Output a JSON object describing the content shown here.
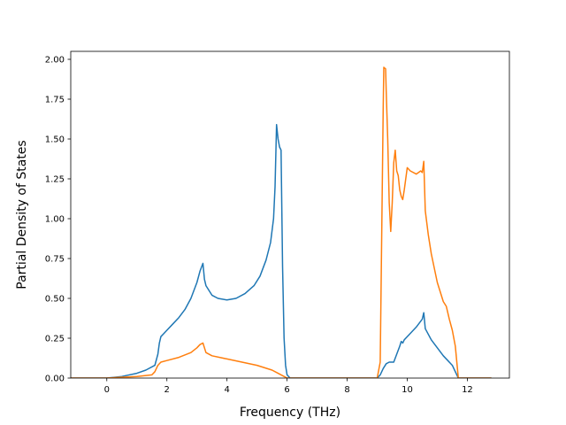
{
  "chart_data": {
    "type": "line",
    "title": "",
    "xlabel": "Frequency (THz)",
    "ylabel": "Partial Density of States",
    "xlim": [
      -1.2,
      13.4
    ],
    "ylim": [
      0,
      2.05
    ],
    "xticks": [
      0,
      2,
      4,
      6,
      8,
      10,
      12
    ],
    "xtick_labels": [
      "0",
      "2",
      "4",
      "6",
      "8",
      "10",
      "12"
    ],
    "yticks": [
      0,
      0.25,
      0.5,
      0.75,
      1.0,
      1.25,
      1.5,
      1.75,
      2.0
    ],
    "ytick_labels": [
      "0.00",
      "0.25",
      "0.50",
      "0.75",
      "1.00",
      "1.25",
      "1.50",
      "1.75",
      "2.00"
    ],
    "grid": false,
    "legend": "none",
    "series": [
      {
        "color": "#1f77b4",
        "x": [
          -1.2,
          -0.5,
          0,
          0.5,
          1.0,
          1.3,
          1.6,
          1.7,
          1.75,
          1.8,
          1.9,
          2.0,
          2.2,
          2.4,
          2.6,
          2.8,
          3.0,
          3.1,
          3.2,
          3.25,
          3.3,
          3.5,
          3.7,
          4.0,
          4.3,
          4.6,
          4.9,
          5.1,
          5.3,
          5.45,
          5.55,
          5.6,
          5.65,
          5.7,
          5.75,
          5.8,
          5.85,
          5.9,
          5.95,
          6.0,
          6.1,
          6.3,
          8.0,
          9.0,
          9.1,
          9.2,
          9.3,
          9.4,
          9.55,
          9.65,
          9.75,
          9.8,
          9.85,
          9.9,
          10.1,
          10.3,
          10.5,
          10.55,
          10.6,
          10.8,
          11.0,
          11.2,
          11.5,
          11.6,
          11.7,
          12.8
        ],
        "y": [
          0,
          0,
          0,
          0.01,
          0.03,
          0.05,
          0.08,
          0.15,
          0.22,
          0.26,
          0.28,
          0.3,
          0.34,
          0.38,
          0.43,
          0.5,
          0.6,
          0.67,
          0.72,
          0.62,
          0.58,
          0.52,
          0.5,
          0.49,
          0.5,
          0.53,
          0.58,
          0.64,
          0.74,
          0.85,
          1.0,
          1.2,
          1.59,
          1.5,
          1.45,
          1.43,
          0.7,
          0.25,
          0.08,
          0.02,
          0,
          0,
          0,
          0,
          0.02,
          0.06,
          0.09,
          0.1,
          0.1,
          0.15,
          0.2,
          0.23,
          0.22,
          0.24,
          0.28,
          0.32,
          0.37,
          0.41,
          0.31,
          0.24,
          0.19,
          0.14,
          0.08,
          0.04,
          0,
          0
        ]
      },
      {
        "color": "#ff7f0e",
        "x": [
          -1.2,
          0,
          1.0,
          1.5,
          1.6,
          1.7,
          1.8,
          2.0,
          2.4,
          2.8,
          3.0,
          3.1,
          3.2,
          3.25,
          3.3,
          3.5,
          4.0,
          4.5,
          5.0,
          5.5,
          5.7,
          5.9,
          6.0,
          6.05,
          7.0,
          8.0,
          9.0,
          9.1,
          9.15,
          9.2,
          9.22,
          9.28,
          9.3,
          9.35,
          9.4,
          9.45,
          9.5,
          9.55,
          9.6,
          9.65,
          9.7,
          9.75,
          9.8,
          9.85,
          9.9,
          10.0,
          10.1,
          10.3,
          10.45,
          10.5,
          10.55,
          10.6,
          10.7,
          10.8,
          11.0,
          11.2,
          11.3,
          11.4,
          11.5,
          11.6,
          11.7,
          12.8
        ],
        "y": [
          0,
          0,
          0.01,
          0.02,
          0.04,
          0.08,
          0.1,
          0.11,
          0.13,
          0.16,
          0.19,
          0.21,
          0.22,
          0.19,
          0.16,
          0.14,
          0.12,
          0.1,
          0.08,
          0.05,
          0.03,
          0.01,
          0,
          0,
          0,
          0,
          0,
          0.1,
          0.9,
          1.7,
          1.95,
          1.94,
          1.8,
          1.5,
          1.1,
          0.92,
          1.1,
          1.35,
          1.43,
          1.3,
          1.27,
          1.18,
          1.14,
          1.12,
          1.18,
          1.32,
          1.3,
          1.28,
          1.3,
          1.29,
          1.36,
          1.05,
          0.9,
          0.78,
          0.6,
          0.48,
          0.45,
          0.37,
          0.3,
          0.2,
          0,
          0
        ]
      }
    ]
  }
}
